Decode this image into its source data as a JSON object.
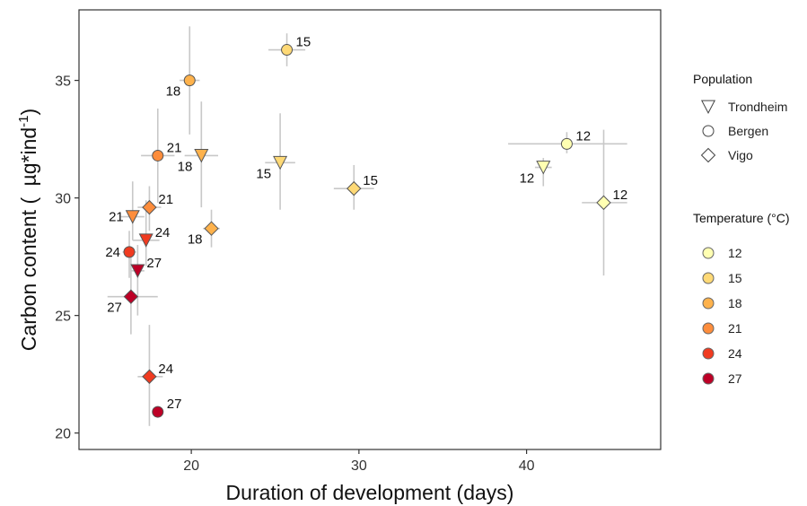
{
  "chart_data": {
    "type": "scatter",
    "xlabel": "Duration of development (days)",
    "ylabel_main": "Carbon content ( ",
    "ylabel_mu": "µg*ind",
    "ylabel_sup": "-1",
    "ylabel_close": ")",
    "xlim": [
      13.3,
      48.0
    ],
    "ylim": [
      19.3,
      38.0
    ],
    "x_ticks": [
      20,
      30,
      40
    ],
    "y_ticks": [
      20,
      25,
      30,
      35
    ],
    "grid": false,
    "legend_placement": "right",
    "error_bar_color": "#c8c8c8",
    "marker_stroke": "#555555",
    "legend_population": {
      "title": "Population",
      "items": [
        {
          "name": "Trondheim",
          "shape": "triangle-down"
        },
        {
          "name": "Bergen",
          "shape": "circle"
        },
        {
          "name": "Vigo",
          "shape": "diamond"
        }
      ]
    },
    "legend_temperature": {
      "title": "Temperature (°C)",
      "items": [
        {
          "label": "12",
          "color": "#ffffb2"
        },
        {
          "label": "15",
          "color": "#fed976"
        },
        {
          "label": "18",
          "color": "#feb24c"
        },
        {
          "label": "21",
          "color": "#fd8d3c"
        },
        {
          "label": "24",
          "color": "#f03b20"
        },
        {
          "label": "27",
          "color": "#bd0026"
        }
      ]
    },
    "points": [
      {
        "population": "Bergen",
        "temperature": "15",
        "x": 25.7,
        "y": 36.3,
        "x_err": [
          24.6,
          26.8
        ],
        "y_err": [
          35.6,
          37.0
        ],
        "label": "15",
        "label_pos": "right"
      },
      {
        "population": "Bergen",
        "temperature": "18",
        "x": 19.9,
        "y": 35.0,
        "x_err": [
          19.3,
          20.5
        ],
        "y_err": [
          32.7,
          37.3
        ],
        "label": "18",
        "label_pos": "below-left"
      },
      {
        "population": "Bergen",
        "temperature": "21",
        "x": 18.0,
        "y": 31.8,
        "x_err": [
          17.0,
          19.0
        ],
        "y_err": [
          29.8,
          33.8
        ],
        "label": "21",
        "label_pos": "right"
      },
      {
        "population": "Bergen",
        "temperature": "24",
        "x": 16.3,
        "y": 27.7,
        "x_err": [
          15.9,
          16.7
        ],
        "y_err": [
          26.6,
          28.6
        ],
        "label": "24",
        "label_pos": "left"
      },
      {
        "population": "Bergen",
        "temperature": "27",
        "x": 18.0,
        "y": 20.9,
        "x_err": [
          17.8,
          18.2
        ],
        "y_err": [
          20.9,
          20.9
        ],
        "label": "27",
        "label_pos": "right"
      },
      {
        "population": "Bergen",
        "temperature": "12",
        "x": 42.4,
        "y": 32.3,
        "x_err": [
          38.9,
          46.0
        ],
        "y_err": [
          31.9,
          32.8
        ],
        "label": "12",
        "label_pos": "right"
      },
      {
        "population": "Trondheim",
        "temperature": "18",
        "x": 20.6,
        "y": 31.8,
        "x_err": [
          19.6,
          21.6
        ],
        "y_err": [
          29.6,
          34.1
        ],
        "label": "18",
        "label_pos": "below-left"
      },
      {
        "population": "Trondheim",
        "temperature": "15",
        "x": 25.3,
        "y": 31.5,
        "x_err": [
          24.4,
          26.2
        ],
        "y_err": [
          29.5,
          33.6
        ],
        "label": "15",
        "label_pos": "below-left"
      },
      {
        "population": "Trondheim",
        "temperature": "21",
        "x": 16.5,
        "y": 29.2,
        "x_err": [
          15.8,
          17.2
        ],
        "y_err": [
          28.2,
          30.7
        ],
        "label": "21",
        "label_pos": "left"
      },
      {
        "population": "Trondheim",
        "temperature": "24",
        "x": 17.3,
        "y": 28.2,
        "x_err": [
          16.5,
          18.1
        ],
        "y_err": [
          27.1,
          29.9
        ],
        "label": "24",
        "label_pos": "right"
      },
      {
        "population": "Trondheim",
        "temperature": "27",
        "x": 16.8,
        "y": 26.9,
        "x_err": [
          16.4,
          17.2
        ],
        "y_err": [
          25.0,
          28.0
        ],
        "label": "27",
        "label_pos": "right"
      },
      {
        "population": "Trondheim",
        "temperature": "12",
        "x": 41.0,
        "y": 31.3,
        "x_err": [
          40.5,
          41.5
        ],
        "y_err": [
          30.5,
          31.7
        ],
        "label": "12",
        "label_pos": "below-left"
      },
      {
        "population": "Vigo",
        "temperature": "21",
        "x": 17.5,
        "y": 29.6,
        "x_err": [
          16.8,
          18.2
        ],
        "y_err": [
          28.6,
          30.5
        ],
        "label": "21",
        "label_pos": "right"
      },
      {
        "population": "Vigo",
        "temperature": "18",
        "x": 21.2,
        "y": 28.7,
        "x_err": [
          20.7,
          21.7
        ],
        "y_err": [
          27.9,
          29.5
        ],
        "label": "18",
        "label_pos": "below-left"
      },
      {
        "population": "Vigo",
        "temperature": "15",
        "x": 29.7,
        "y": 30.4,
        "x_err": [
          28.5,
          30.9
        ],
        "y_err": [
          29.5,
          31.4
        ],
        "label": "15",
        "label_pos": "right"
      },
      {
        "population": "Vigo",
        "temperature": "27",
        "x": 16.4,
        "y": 25.8,
        "x_err": [
          15.0,
          18.0
        ],
        "y_err": [
          24.2,
          27.7
        ],
        "label": "27",
        "label_pos": "below-left"
      },
      {
        "population": "Vigo",
        "temperature": "24",
        "x": 17.5,
        "y": 22.4,
        "x_err": [
          16.8,
          18.3
        ],
        "y_err": [
          20.3,
          24.6
        ],
        "label": "24",
        "label_pos": "right"
      },
      {
        "population": "Vigo",
        "temperature": "12",
        "x": 44.6,
        "y": 29.8,
        "x_err": [
          43.3,
          46.0
        ],
        "y_err": [
          26.7,
          32.9
        ],
        "label": "12",
        "label_pos": "right"
      }
    ]
  }
}
